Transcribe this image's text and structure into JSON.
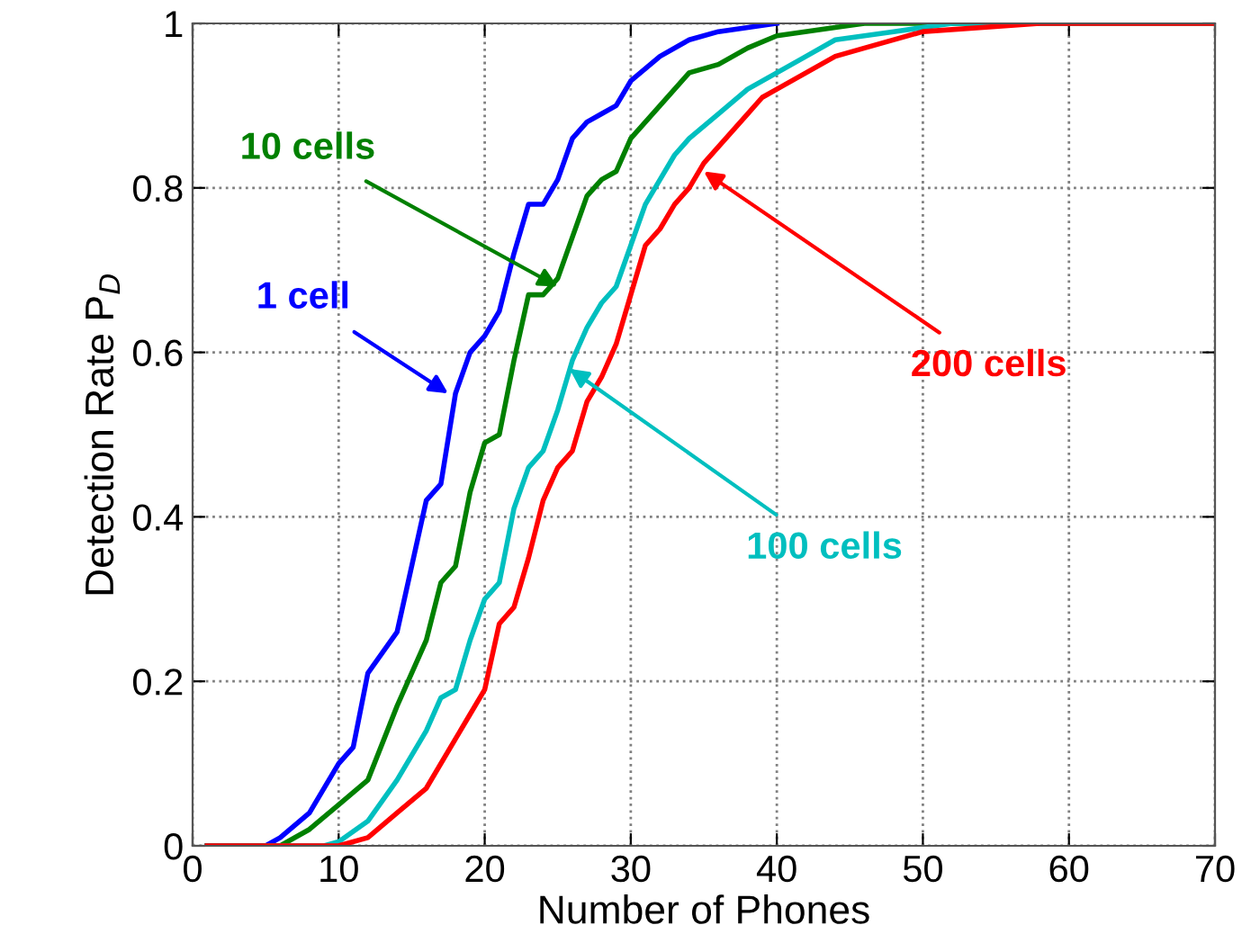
{
  "chart_data": {
    "type": "line",
    "xlabel": "Number of Phones",
    "ylabel": "Detection Rate P$_{D}$",
    "xlim": [
      0,
      70
    ],
    "ylim": [
      0,
      1
    ],
    "xticks": [
      0,
      10,
      20,
      30,
      40,
      50,
      60,
      70
    ],
    "yticks": [
      0,
      0.2,
      0.4,
      0.6,
      0.8,
      1
    ],
    "grid": true,
    "line_style": "solid",
    "marker": "none",
    "series": [
      {
        "color": "#0000ff",
        "x": [
          1,
          5,
          6,
          8,
          10,
          11,
          12,
          14,
          16,
          17,
          18,
          19,
          20,
          21,
          22,
          23,
          24,
          25,
          26,
          27,
          28,
          29,
          30,
          32,
          34,
          36,
          40
        ],
        "values": [
          0,
          0,
          0.01,
          0.04,
          0.1,
          0.12,
          0.21,
          0.26,
          0.42,
          0.44,
          0.55,
          0.6,
          0.62,
          0.65,
          0.72,
          0.78,
          0.78,
          0.81,
          0.86,
          0.88,
          0.89,
          0.9,
          0.93,
          0.96,
          0.98,
          0.99,
          1
        ]
      },
      {
        "color": "#008000",
        "x": [
          1,
          6,
          8,
          10,
          12,
          14,
          16,
          17,
          18,
          19,
          20,
          21,
          22,
          23,
          24,
          25,
          26,
          27,
          28,
          29,
          30,
          32,
          34,
          36,
          38,
          40,
          44,
          46,
          70
        ],
        "values": [
          0,
          0,
          0.02,
          0.05,
          0.08,
          0.17,
          0.25,
          0.32,
          0.34,
          0.43,
          0.49,
          0.5,
          0.59,
          0.67,
          0.67,
          0.69,
          0.74,
          0.79,
          0.81,
          0.82,
          0.86,
          0.9,
          0.94,
          0.95,
          0.97,
          0.985,
          0.995,
          1,
          1
        ]
      },
      {
        "color": "#00bfbf",
        "x": [
          1,
          9,
          10,
          12,
          14,
          16,
          17,
          18,
          19,
          20,
          21,
          22,
          23,
          24,
          25,
          26,
          27,
          28,
          29,
          30,
          31,
          32,
          33,
          34,
          36,
          38,
          40,
          42,
          44,
          48,
          52,
          70
        ],
        "values": [
          0,
          0,
          0.005,
          0.03,
          0.08,
          0.14,
          0.18,
          0.19,
          0.25,
          0.3,
          0.32,
          0.41,
          0.46,
          0.48,
          0.53,
          0.59,
          0.63,
          0.66,
          0.68,
          0.73,
          0.78,
          0.81,
          0.84,
          0.86,
          0.89,
          0.92,
          0.94,
          0.96,
          0.98,
          0.99,
          1,
          1
        ]
      },
      {
        "color": "#ff0000",
        "x": [
          1,
          10,
          12,
          14,
          16,
          18,
          19,
          20,
          21,
          22,
          23,
          24,
          25,
          26,
          27,
          28,
          29,
          30,
          31,
          32,
          33,
          34,
          35,
          36,
          37,
          38,
          39,
          40,
          42,
          44,
          46,
          50,
          58,
          70
        ],
        "values": [
          0,
          0,
          0.01,
          0.04,
          0.07,
          0.13,
          0.16,
          0.19,
          0.27,
          0.29,
          0.35,
          0.42,
          0.46,
          0.48,
          0.54,
          0.57,
          0.61,
          0.67,
          0.73,
          0.75,
          0.78,
          0.8,
          0.83,
          0.85,
          0.87,
          0.89,
          0.91,
          0.92,
          0.94,
          0.96,
          0.97,
          0.99,
          1,
          1
        ]
      }
    ],
    "annotations": [
      {
        "text": "1 cell",
        "x": 17.5,
        "y": 0.55
      },
      {
        "text": "10 cells",
        "x": 25,
        "y": 0.68
      },
      {
        "text": "100 cells",
        "x": 25.8,
        "y": 0.58
      },
      {
        "text": "200 cells",
        "x": 35,
        "y": 0.82
      }
    ]
  }
}
